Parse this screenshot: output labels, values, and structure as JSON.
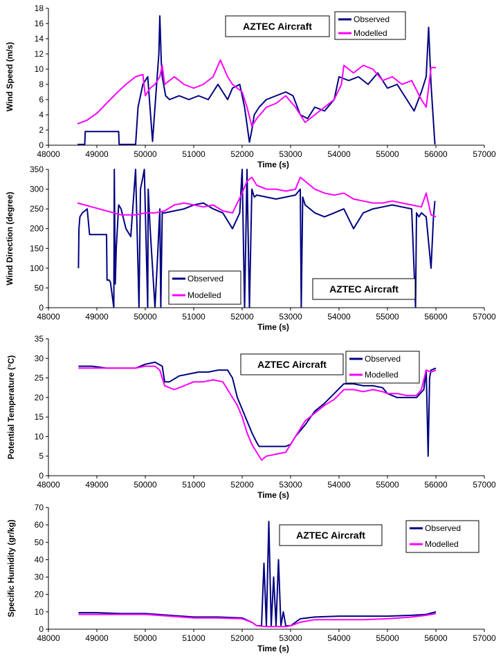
{
  "chart_data": [
    {
      "type": "line",
      "title": "",
      "xlabel": "Time (s)",
      "ylabel": "Wind Speed (m/s)",
      "xlim": [
        48000,
        57000
      ],
      "ylim": [
        0,
        18
      ],
      "xticks": [
        48000,
        49000,
        50000,
        51000,
        52000,
        53000,
        54000,
        55000,
        56000,
        57000
      ],
      "yticks": [
        0,
        2,
        4,
        6,
        8,
        10,
        12,
        14,
        16,
        18
      ],
      "annotation": "AZTEC Aircraft",
      "legend_position": "top-right",
      "series": [
        {
          "name": "Observed",
          "color": "#000080",
          "x": [
            48600,
            48750,
            48760,
            49000,
            49450,
            49460,
            49800,
            49850,
            49950,
            50050,
            50150,
            50200,
            50280,
            50300,
            50330,
            50350,
            50420,
            50500,
            50700,
            50900,
            51100,
            51300,
            51500,
            51700,
            51800,
            51950,
            52050,
            52150,
            52200,
            52250,
            52350,
            52500,
            52700,
            52900,
            53050,
            53200,
            53350,
            53500,
            53700,
            53900,
            54000,
            54200,
            54400,
            54600,
            54800,
            55000,
            55200,
            55400,
            55550,
            55700,
            55800,
            55850,
            55900,
            55930,
            55980
          ],
          "y": [
            0.1,
            0.1,
            1.8,
            1.8,
            1.8,
            0.1,
            0.1,
            5,
            8,
            9,
            0.5,
            5,
            12,
            17,
            11,
            9,
            6.5,
            6,
            6.5,
            6,
            6.5,
            6,
            8,
            6,
            7.5,
            8,
            5,
            0.4,
            2,
            4,
            5,
            6,
            6.5,
            7,
            6.5,
            4,
            3.5,
            5,
            4.5,
            6,
            9,
            8.5,
            9,
            8,
            9.5,
            7.5,
            8,
            6,
            4.5,
            7,
            9,
            15.5,
            8,
            5,
            0.1
          ]
        },
        {
          "name": "Modelled",
          "color": "#ff00ff",
          "x": [
            48600,
            48800,
            49000,
            49200,
            49400,
            49600,
            49800,
            49950,
            50000,
            50100,
            50200,
            50300,
            50350,
            50400,
            50600,
            50800,
            51000,
            51200,
            51400,
            51550,
            51700,
            51800,
            51900,
            52000,
            52100,
            52200,
            52300,
            52500,
            52700,
            52900,
            53100,
            53300,
            53500,
            53700,
            53900,
            54050,
            54100,
            54300,
            54500,
            54700,
            54900,
            55100,
            55300,
            55500,
            55700,
            55800,
            55900,
            56000
          ],
          "y": [
            2.8,
            3.3,
            4.2,
            5.5,
            6.8,
            8,
            9,
            9.3,
            6.5,
            7.5,
            8,
            9,
            10.5,
            8,
            9,
            8,
            7.5,
            8,
            9,
            11.2,
            9,
            8,
            7.5,
            7,
            5,
            2.5,
            3.5,
            5,
            5.5,
            6.5,
            5,
            3,
            4,
            5,
            6,
            8,
            10.5,
            9.5,
            10.5,
            10,
            8.5,
            9,
            8,
            8.5,
            6,
            5,
            10.2,
            10.2
          ]
        }
      ]
    },
    {
      "type": "line",
      "title": "",
      "xlabel": "Time (s)",
      "ylabel": "Wind Direction (degree)",
      "xlim": [
        48000,
        57000
      ],
      "ylim": [
        0,
        350
      ],
      "xticks": [
        48000,
        49000,
        50000,
        51000,
        52000,
        53000,
        54000,
        55000,
        56000,
        57000
      ],
      "yticks": [
        0,
        50,
        100,
        150,
        200,
        250,
        300,
        350
      ],
      "annotation": "AZTEC Aircraft",
      "legend_position": "bottom-left",
      "series": [
        {
          "name": "Observed",
          "color": "#000080",
          "x": [
            48620,
            48630,
            48650,
            48700,
            48800,
            48850,
            49200,
            49210,
            49250,
            49280,
            49350,
            49360,
            49380,
            49400,
            49450,
            49500,
            49600,
            49700,
            49800,
            49850,
            49870,
            49900,
            49950,
            49980,
            50050,
            50060,
            50100,
            50150,
            50200,
            50250,
            50300,
            50320,
            50350,
            50400,
            50600,
            50800,
            51000,
            51200,
            51400,
            51600,
            51800,
            51950,
            52000,
            52050,
            52100,
            52150,
            52200,
            52250,
            52300,
            52500,
            52700,
            52900,
            53100,
            53200,
            53220,
            53250,
            53300,
            53500,
            53700,
            53900,
            54100,
            54300,
            54500,
            54700,
            54900,
            55100,
            55300,
            55500,
            55580,
            55600,
            55650,
            55700,
            55800,
            55900,
            55950,
            55980
          ],
          "y": [
            100,
            200,
            230,
            240,
            250,
            185,
            185,
            70,
            70,
            65,
            0,
            350,
            60,
            150,
            260,
            250,
            200,
            180,
            350,
            100,
            0,
            300,
            330,
            350,
            0,
            300,
            200,
            100,
            0,
            120,
            250,
            0,
            240,
            240,
            245,
            250,
            260,
            265,
            250,
            240,
            200,
            240,
            350,
            0,
            350,
            0,
            300,
            280,
            285,
            280,
            275,
            280,
            285,
            300,
            0,
            280,
            260,
            240,
            230,
            240,
            250,
            200,
            240,
            250,
            255,
            260,
            255,
            250,
            0,
            240,
            230,
            240,
            230,
            100,
            230,
            270
          ]
        },
        {
          "name": "Modelled",
          "color": "#ff00ff",
          "x": [
            48600,
            48900,
            49200,
            49500,
            49800,
            50000,
            50200,
            50400,
            50600,
            50800,
            51000,
            51200,
            51400,
            51600,
            51800,
            52000,
            52100,
            52200,
            52300,
            52500,
            52700,
            52900,
            53100,
            53200,
            53300,
            53500,
            53700,
            53900,
            54100,
            54300,
            54500,
            54700,
            54900,
            55100,
            55300,
            55500,
            55700,
            55800,
            55900,
            56000
          ],
          "y": [
            265,
            255,
            245,
            235,
            235,
            240,
            240,
            245,
            260,
            265,
            260,
            255,
            260,
            245,
            240,
            290,
            320,
            330,
            310,
            300,
            300,
            295,
            300,
            330,
            320,
            300,
            290,
            285,
            290,
            275,
            270,
            265,
            265,
            270,
            265,
            260,
            255,
            290,
            235,
            230
          ]
        }
      ]
    },
    {
      "type": "line",
      "title": "",
      "xlabel": "Time (s)",
      "ylabel": "Potential Temperature (°C)",
      "xlim": [
        48000,
        57000
      ],
      "ylim": [
        0,
        35
      ],
      "xticks": [
        48000,
        49000,
        50000,
        51000,
        52000,
        53000,
        54000,
        55000,
        56000,
        57000
      ],
      "yticks": [
        0,
        5,
        10,
        15,
        20,
        25,
        30,
        35
      ],
      "annotation": "AZTEC Aircraft",
      "legend_position": "top-right",
      "series": [
        {
          "name": "Observed",
          "color": "#000080",
          "x": [
            48620,
            48900,
            49200,
            49500,
            49800,
            50000,
            50200,
            50350,
            50400,
            50500,
            50700,
            50900,
            51100,
            51300,
            51500,
            51700,
            51800,
            51900,
            52000,
            52100,
            52200,
            52300,
            52350,
            52500,
            52700,
            52900,
            53000,
            53100,
            53300,
            53500,
            53700,
            53900,
            54100,
            54300,
            54500,
            54700,
            54900,
            55000,
            55200,
            55400,
            55600,
            55750,
            55800,
            55840,
            55870,
            55900,
            56000
          ],
          "y": [
            28,
            28,
            27.5,
            27.5,
            27.5,
            28.5,
            29,
            28,
            24,
            24,
            25.5,
            26,
            26.5,
            26.5,
            27,
            27,
            25,
            20,
            17,
            14,
            11,
            8.5,
            7.5,
            7.5,
            7.5,
            7.5,
            8,
            10,
            13,
            16.5,
            18.5,
            21,
            23.5,
            23.5,
            23,
            23,
            22.5,
            21,
            20,
            20,
            20,
            22,
            27,
            5,
            25,
            27,
            27.5
          ]
        },
        {
          "name": "Modelled",
          "color": "#ff00ff",
          "x": [
            48620,
            48900,
            49200,
            49500,
            49800,
            50000,
            50200,
            50300,
            50400,
            50600,
            50800,
            51000,
            51200,
            51400,
            51600,
            51700,
            51800,
            51900,
            52000,
            52100,
            52200,
            52300,
            52400,
            52500,
            52700,
            52900,
            53000,
            53100,
            53300,
            53500,
            53700,
            53900,
            54100,
            54300,
            54500,
            54700,
            54900,
            55000,
            55200,
            55400,
            55600,
            55700,
            55800,
            55900,
            56000
          ],
          "y": [
            27.5,
            27.5,
            27.5,
            27.5,
            27.5,
            28,
            28,
            27,
            23,
            22,
            23,
            24,
            24,
            24.5,
            24,
            22,
            20,
            18,
            15,
            11,
            8,
            6,
            4,
            5,
            5.5,
            6,
            8,
            10,
            14,
            16,
            18,
            19.5,
            22,
            22,
            21.5,
            22,
            21.5,
            21,
            21,
            20.5,
            20.5,
            22,
            27,
            26.5,
            27
          ]
        }
      ]
    },
    {
      "type": "line",
      "title": "",
      "xlabel": "Time (s)",
      "ylabel": "Specific Humidity (gr/kg)",
      "xlim": [
        48000,
        57000
      ],
      "ylim": [
        0,
        70
      ],
      "xticks": [
        48000,
        49000,
        50000,
        51000,
        52000,
        53000,
        54000,
        55000,
        56000,
        57000
      ],
      "yticks": [
        0,
        10,
        20,
        30,
        40,
        50,
        60,
        70
      ],
      "annotation": "AZTEC Aircraft",
      "legend_position": "top-right",
      "series": [
        {
          "name": "Observed",
          "color": "#000080",
          "x": [
            48620,
            49000,
            49500,
            50000,
            50500,
            51000,
            51500,
            52000,
            52200,
            52300,
            52400,
            52450,
            52500,
            52550,
            52600,
            52650,
            52700,
            52750,
            52800,
            52850,
            52900,
            53000,
            53200,
            53500,
            54000,
            54500,
            55000,
            55500,
            55800,
            56000
          ],
          "y": [
            9.5,
            9.5,
            9,
            9,
            8,
            7,
            7,
            6.5,
            4,
            2,
            2,
            38,
            2,
            62,
            2,
            30,
            2,
            40,
            2,
            10,
            2,
            2,
            6,
            7,
            7.5,
            7.5,
            7.5,
            8,
            8.5,
            10
          ]
        },
        {
          "name": "Modelled",
          "color": "#ff00ff",
          "x": [
            48620,
            49000,
            49500,
            50000,
            50500,
            51000,
            51500,
            52000,
            52200,
            52300,
            52500,
            52700,
            52900,
            53000,
            53200,
            53500,
            54000,
            54500,
            55000,
            55500,
            55800,
            56000
          ],
          "y": [
            8.5,
            8.5,
            8.5,
            8.5,
            7.5,
            6.5,
            6.5,
            6,
            4,
            2,
            1.5,
            1.5,
            1.5,
            2,
            4,
            5.5,
            5.5,
            5.5,
            6,
            7,
            8,
            9
          ]
        }
      ]
    }
  ]
}
